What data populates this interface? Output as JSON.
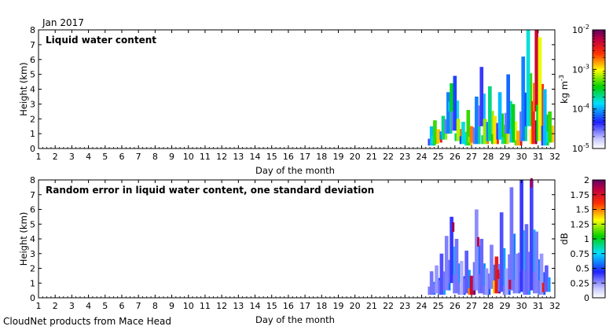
{
  "header": {
    "date_label": "Jan 2017"
  },
  "footer": {
    "credit": "CloudNet products from Mace Head"
  },
  "chart_data": [
    {
      "type": "heatmap",
      "title": "Liquid water content",
      "xlabel": "Day of the month",
      "ylabel": "Height (km)",
      "xlim": [
        1,
        32
      ],
      "ylim": [
        0,
        8
      ],
      "xticks": [
        1,
        2,
        3,
        4,
        5,
        6,
        7,
        8,
        9,
        10,
        11,
        12,
        13,
        14,
        15,
        16,
        17,
        18,
        19,
        20,
        21,
        22,
        23,
        24,
        25,
        26,
        27,
        28,
        29,
        30,
        31,
        32
      ],
      "yticks": [
        0,
        1,
        2,
        3,
        4,
        5,
        6,
        7,
        8
      ],
      "colorbar": {
        "scale": "log",
        "range": [
          1e-05,
          0.01
        ],
        "tick_labels": [
          {
            "base": "10",
            "exp": "-2",
            "value": 0.01
          },
          {
            "base": "10",
            "exp": "-3",
            "value": 0.001
          },
          {
            "base": "10",
            "exp": "-4",
            "value": 0.0001
          },
          {
            "base": "10",
            "exp": "-5",
            "value": 1e-05
          }
        ],
        "unit": {
          "main": "kg m",
          "exp": "-3"
        },
        "colormap": "white-blue-cyan-green-yellow-red-purple"
      },
      "data_extent_days": [
        24.5,
        32
      ],
      "grey_region_note": "",
      "cells": [
        {
          "x": 24.6,
          "y0": 0.2,
          "y1": 1.5,
          "v": 0.35
        },
        {
          "x": 24.8,
          "y0": 0.3,
          "y1": 1.9,
          "v": 0.55
        },
        {
          "x": 25.0,
          "y0": 0.4,
          "y1": 1.3,
          "v": 0.7
        },
        {
          "x": 25.3,
          "y0": 0.6,
          "y1": 2.2,
          "v": 0.45
        },
        {
          "x": 25.6,
          "y0": 1.0,
          "y1": 3.8,
          "v": 0.3
        },
        {
          "x": 25.8,
          "y0": 2.5,
          "y1": 4.4,
          "v": 0.5
        },
        {
          "x": 26.0,
          "y0": 1.2,
          "y1": 4.9,
          "v": 0.25
        },
        {
          "x": 26.2,
          "y0": 0.5,
          "y1": 2.0,
          "v": 0.62
        },
        {
          "x": 26.5,
          "y0": 0.3,
          "y1": 1.8,
          "v": 0.4
        },
        {
          "x": 26.8,
          "y0": 0.2,
          "y1": 2.6,
          "v": 0.55
        },
        {
          "x": 27.0,
          "y0": 0.4,
          "y1": 1.5,
          "v": 0.75
        },
        {
          "x": 27.3,
          "y0": 0.3,
          "y1": 3.5,
          "v": 0.3
        },
        {
          "x": 27.6,
          "y0": 1.5,
          "y1": 5.5,
          "v": 0.2
        },
        {
          "x": 27.8,
          "y0": 0.3,
          "y1": 2.0,
          "v": 0.6
        },
        {
          "x": 28.1,
          "y0": 0.5,
          "y1": 4.2,
          "v": 0.45
        },
        {
          "x": 28.4,
          "y0": 0.3,
          "y1": 2.2,
          "v": 0.68
        },
        {
          "x": 28.7,
          "y0": 0.6,
          "y1": 3.8,
          "v": 0.35
        },
        {
          "x": 29.0,
          "y0": 0.3,
          "y1": 1.6,
          "v": 0.55
        },
        {
          "x": 29.2,
          "y0": 1.0,
          "y1": 5.0,
          "v": 0.28
        },
        {
          "x": 29.5,
          "y0": 0.4,
          "y1": 3.0,
          "v": 0.5
        },
        {
          "x": 29.8,
          "y0": 0.2,
          "y1": 1.2,
          "v": 0.72
        },
        {
          "x": 30.1,
          "y0": 0.5,
          "y1": 6.2,
          "v": 0.3
        },
        {
          "x": 30.4,
          "y0": 1.5,
          "y1": 8.0,
          "v": 0.4
        },
        {
          "x": 30.7,
          "y0": 0.3,
          "y1": 3.2,
          "v": 0.82
        },
        {
          "x": 30.9,
          "y0": 2.5,
          "y1": 8.0,
          "v": 0.9
        },
        {
          "x": 31.1,
          "y0": 0.5,
          "y1": 7.5,
          "v": 0.65
        },
        {
          "x": 31.4,
          "y0": 0.2,
          "y1": 4.0,
          "v": 0.35
        },
        {
          "x": 31.7,
          "y0": 0.4,
          "y1": 2.5,
          "v": 0.55
        }
      ]
    },
    {
      "type": "heatmap",
      "title": "Random error in liquid water content, one standard deviation",
      "xlabel": "Day of the month",
      "ylabel": "Height (km)",
      "xlim": [
        1,
        32
      ],
      "ylim": [
        0,
        8
      ],
      "xticks": [
        1,
        2,
        3,
        4,
        5,
        6,
        7,
        8,
        9,
        10,
        11,
        12,
        13,
        14,
        15,
        16,
        17,
        18,
        19,
        20,
        21,
        22,
        23,
        24,
        25,
        26,
        27,
        28,
        29,
        30,
        31,
        32
      ],
      "yticks": [
        0,
        1,
        2,
        3,
        4,
        5,
        6,
        7,
        8
      ],
      "colorbar": {
        "scale": "linear",
        "range": [
          0,
          2
        ],
        "tick_labels": [
          "2",
          "1.75",
          "1.5",
          "1.25",
          "1",
          "0.75",
          "0.5",
          "0.25",
          "0"
        ],
        "unit": "dB",
        "colormap": "white-blue-cyan-green-yellow-red-purple"
      },
      "data_extent_days": [
        24.5,
        32
      ],
      "cells": [
        {
          "x": 24.6,
          "y0": 0.2,
          "y1": 1.8,
          "v": 0.15
        },
        {
          "x": 24.9,
          "y0": 0.3,
          "y1": 2.2,
          "v": 0.12
        },
        {
          "x": 25.2,
          "y0": 0.2,
          "y1": 3.0,
          "v": 0.18
        },
        {
          "x": 25.5,
          "y0": 0.5,
          "y1": 4.2,
          "v": 0.14
        },
        {
          "x": 25.8,
          "y0": 1.0,
          "y1": 5.5,
          "v": 0.2
        },
        {
          "x": 26.1,
          "y0": 0.3,
          "y1": 4.0,
          "v": 0.15
        },
        {
          "x": 26.4,
          "y0": 0.2,
          "y1": 2.5,
          "v": 0.1
        },
        {
          "x": 26.7,
          "y0": 0.3,
          "y1": 3.2,
          "v": 0.17
        },
        {
          "x": 27.0,
          "y0": 0.2,
          "y1": 1.5,
          "v": 0.9
        },
        {
          "x": 27.3,
          "y0": 0.5,
          "y1": 6.0,
          "v": 0.13
        },
        {
          "x": 27.6,
          "y0": 0.3,
          "y1": 4.0,
          "v": 0.16
        },
        {
          "x": 27.9,
          "y0": 0.2,
          "y1": 2.0,
          "v": 0.12
        },
        {
          "x": 28.2,
          "y0": 0.6,
          "y1": 3.6,
          "v": 0.14
        },
        {
          "x": 28.5,
          "y0": 0.3,
          "y1": 2.8,
          "v": 0.85
        },
        {
          "x": 28.8,
          "y0": 0.4,
          "y1": 5.8,
          "v": 0.18
        },
        {
          "x": 29.1,
          "y0": 0.2,
          "y1": 2.0,
          "v": 0.11
        },
        {
          "x": 29.4,
          "y0": 0.5,
          "y1": 7.5,
          "v": 0.15
        },
        {
          "x": 29.7,
          "y0": 0.3,
          "y1": 3.0,
          "v": 0.13
        },
        {
          "x": 30.0,
          "y0": 0.4,
          "y1": 8.0,
          "v": 0.2
        },
        {
          "x": 30.3,
          "y0": 0.2,
          "y1": 5.0,
          "v": 0.16
        },
        {
          "x": 30.6,
          "y0": 0.5,
          "y1": 8.0,
          "v": 0.19
        },
        {
          "x": 30.9,
          "y0": 0.3,
          "y1": 4.5,
          "v": 0.14
        },
        {
          "x": 31.2,
          "y0": 0.2,
          "y1": 3.0,
          "v": 0.12
        },
        {
          "x": 31.5,
          "y0": 0.4,
          "y1": 2.2,
          "v": 0.17
        }
      ],
      "markers": [
        {
          "x": 25.9,
          "y": 4.8,
          "v": 0.95
        },
        {
          "x": 27.4,
          "y": 3.8,
          "v": 0.92
        },
        {
          "x": 28.6,
          "y": 1.6,
          "v": 0.88
        },
        {
          "x": 29.3,
          "y": 0.9,
          "v": 0.9
        },
        {
          "x": 30.6,
          "y": 7.8,
          "v": 0.93
        },
        {
          "x": 31.3,
          "y": 0.7,
          "v": 0.85
        }
      ]
    }
  ]
}
